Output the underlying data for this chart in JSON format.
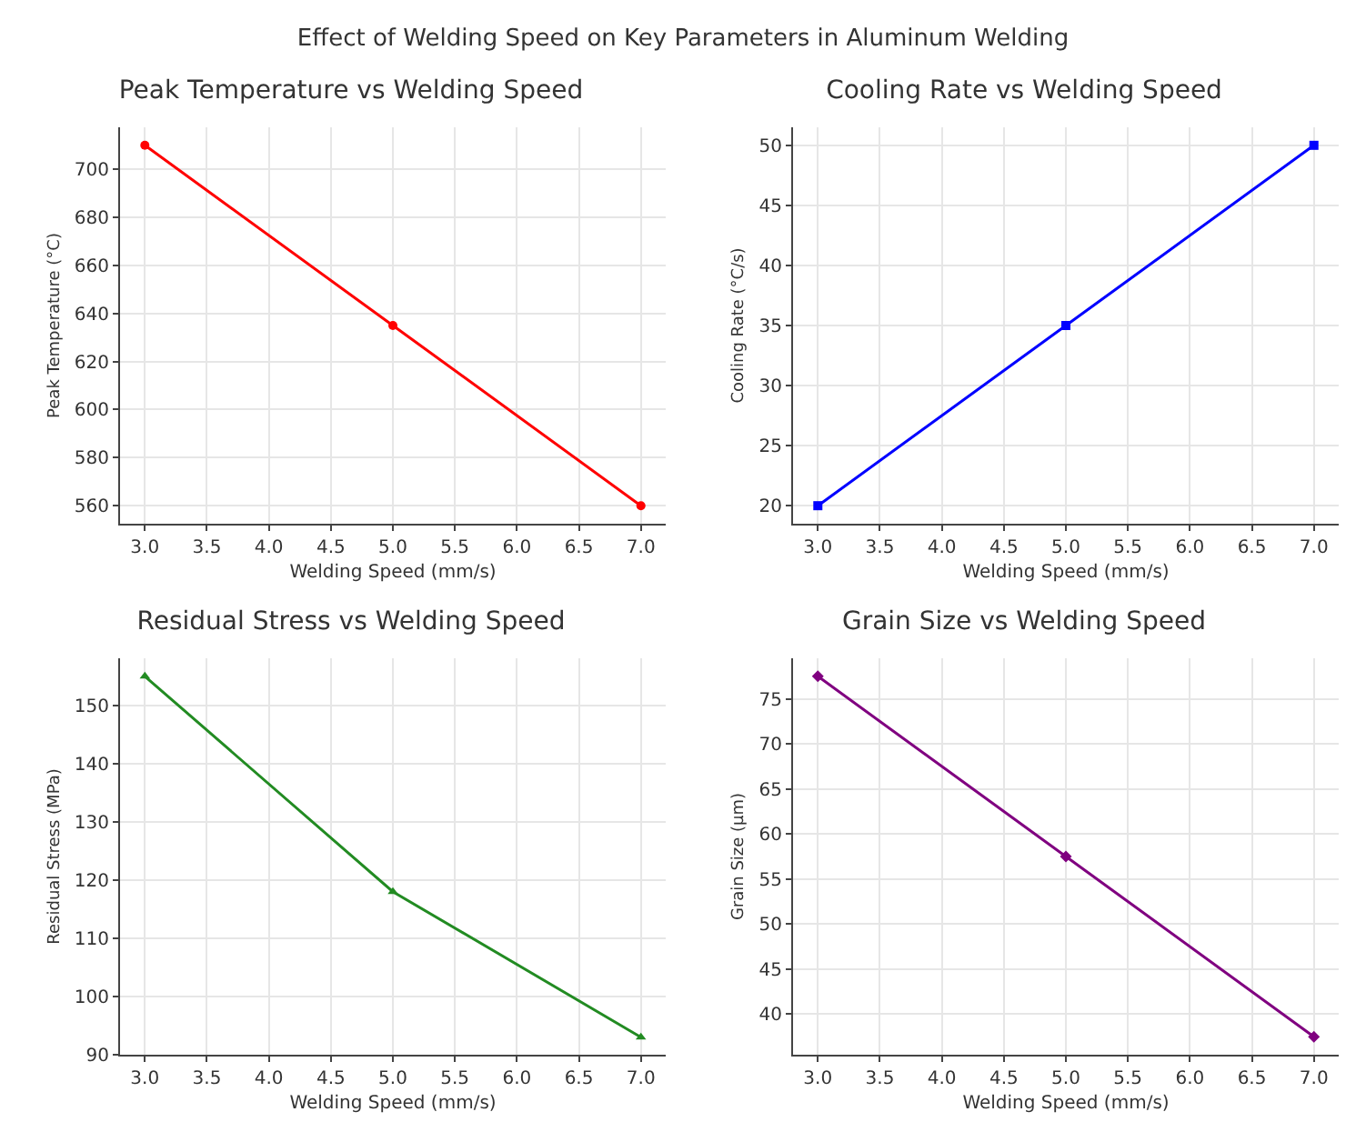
{
  "chart_data": [
    {
      "type": "line",
      "title": "Peak Temperature vs Welding Speed",
      "annotations": [
        "Effect of Welding Speed on Key Parameters in Aluminum Welding"
      ],
      "xlabel": "Welding Speed (mm/s)",
      "ylabel": "Peak Temperature (°C)",
      "x": [
        3,
        5,
        7
      ],
      "series": [
        {
          "color": "#ff0000",
          "values": [
            710,
            635,
            560
          ]
        }
      ],
      "xlim": [
        2.8,
        7.2
      ],
      "xticks": [
        {
          "value": 3,
          "label": "3.0"
        },
        3.5,
        {
          "value": 4,
          "label": "4.0"
        },
        4.5,
        {
          "value": 5,
          "label": "5.0"
        },
        5.5,
        {
          "value": 6,
          "label": "6.0"
        },
        6.5,
        {
          "value": 7,
          "label": "7.0"
        }
      ],
      "ylim": [
        552.5,
        717.5
      ],
      "yticks": [
        560,
        580,
        600,
        620,
        640,
        660,
        680,
        700
      ],
      "grid": true,
      "marker": "circle"
    },
    {
      "type": "line",
      "title": "Cooling Rate vs Welding Speed",
      "xlabel": "Welding Speed (mm/s)",
      "ylabel": "Cooling Rate (°C/s)",
      "x": [
        3,
        5,
        7
      ],
      "series": [
        {
          "color": "#0000ff",
          "values": [
            20,
            35,
            50
          ]
        }
      ],
      "xlim": [
        2.8,
        7.2
      ],
      "xticks": [
        {
          "value": 3,
          "label": "3.0"
        },
        3.5,
        {
          "value": 4,
          "label": "4.0"
        },
        4.5,
        {
          "value": 5,
          "label": "5.0"
        },
        5.5,
        {
          "value": 6,
          "label": "6.0"
        },
        6.5,
        {
          "value": 7,
          "label": "7.0"
        }
      ],
      "ylim": [
        18.5,
        51.5
      ],
      "yticks": [
        20,
        25,
        30,
        35,
        40,
        45,
        50
      ],
      "grid": true,
      "marker": "square"
    },
    {
      "type": "line",
      "title": "Residual Stress vs Welding Speed",
      "xlabel": "Welding Speed (mm/s)",
      "ylabel": "Residual Stress (MPa)",
      "x": [
        3,
        5,
        7
      ],
      "series": [
        {
          "color": "#228b22",
          "values": [
            155,
            118,
            93
          ]
        }
      ],
      "xlim": [
        2.8,
        7.2
      ],
      "xticks": [
        {
          "value": 3,
          "label": "3.0"
        },
        3.5,
        {
          "value": 4,
          "label": "4.0"
        },
        4.5,
        {
          "value": 5,
          "label": "5.0"
        },
        5.5,
        {
          "value": 6,
          "label": "6.0"
        },
        6.5,
        {
          "value": 7,
          "label": "7.0"
        }
      ],
      "ylim": [
        90,
        158.1
      ],
      "yticks": [
        90,
        100,
        110,
        120,
        130,
        140,
        150
      ],
      "grid": true,
      "marker": "triangle"
    },
    {
      "type": "line",
      "title": "Grain Size vs Welding Speed",
      "xlabel": "Welding Speed (mm/s)",
      "ylabel": "Grain Size (µm)",
      "x": [
        3,
        5,
        7
      ],
      "series": [
        {
          "color": "#800080",
          "values": [
            77.5,
            57.5,
            37.5
          ]
        }
      ],
      "xlim": [
        2.8,
        7.2
      ],
      "xticks": [
        {
          "value": 3,
          "label": "3.0"
        },
        3.5,
        {
          "value": 4,
          "label": "4.0"
        },
        4.5,
        {
          "value": 5,
          "label": "5.0"
        },
        5.5,
        {
          "value": 6,
          "label": "6.0"
        },
        6.5,
        {
          "value": 7,
          "label": "7.0"
        }
      ],
      "ylim": [
        35.5,
        79.5
      ],
      "yticks": [
        40,
        45,
        50,
        55,
        60,
        65,
        70,
        75
      ],
      "grid": true,
      "marker": "diamond"
    }
  ]
}
